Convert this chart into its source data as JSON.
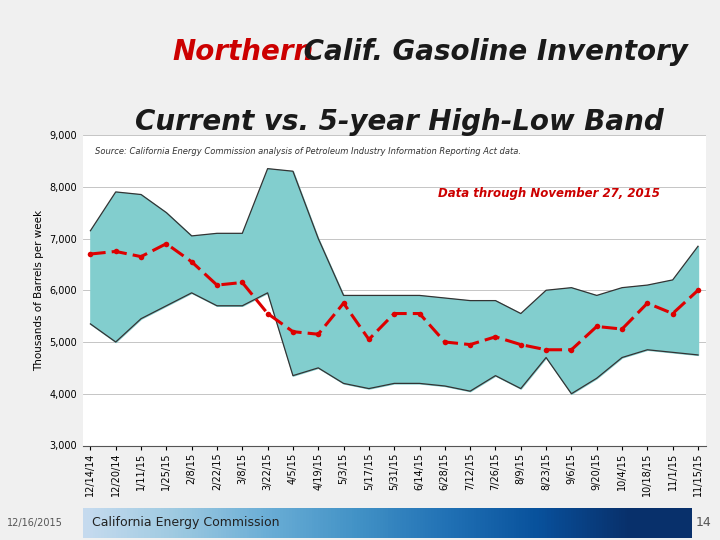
{
  "title_northern": "Northern",
  "title_rest_line1": " Calif. Gasoline Inventory",
  "title_line2": "Current vs. 5-year High-Low Band",
  "title_color_red": "#CC0000",
  "title_color_black": "#1a1a1a",
  "title_fontsize": 20,
  "source_text": "Source: California Energy Commission analysis of Petroleum Industry Information Reporting Act data.",
  "annotation_text": "Data through November 27, 2015",
  "annotation_color": "#CC0000",
  "ylabel": "Thousands of Barrels per week",
  "ylim": [
    3000,
    9000
  ],
  "yticks": [
    3000,
    4000,
    5000,
    6000,
    7000,
    8000,
    9000
  ],
  "footer_date": "12/16/2015",
  "footer_text": "California Energy Commission",
  "footer_number": "14",
  "band_fill_color": "#82CECE",
  "band_edge_color": "#333333",
  "current_color": "#DD0000",
  "background_color": "#f0f0f0",
  "chart_bg": "#ffffff",
  "x_labels": [
    "12/14/14",
    "12/20/14",
    "1/11/15",
    "1/25/15",
    "2/8/15",
    "2/22/15",
    "3/8/15",
    "3/22/15",
    "4/5/15",
    "4/19/15",
    "5/3/15",
    "5/17/15",
    "5/31/15",
    "6/14/15",
    "6/28/15",
    "7/12/15",
    "7/26/15",
    "8/9/15",
    "8/23/15",
    "9/6/15",
    "9/20/15",
    "10/4/15",
    "10/18/15",
    "11/1/15",
    "11/15/15"
  ],
  "high_values": [
    7150,
    7900,
    7850,
    7500,
    7050,
    7100,
    7100,
    8350,
    8300,
    7000,
    5900,
    5900,
    5900,
    5900,
    5850,
    5800,
    5800,
    5550,
    6000,
    6050,
    5900,
    6050,
    6100,
    6200,
    6850
  ],
  "low_values": [
    5350,
    5000,
    5450,
    5700,
    5950,
    5700,
    5700,
    5950,
    4350,
    4500,
    4200,
    4100,
    4200,
    4200,
    4150,
    4050,
    4350,
    4100,
    4700,
    4000,
    4300,
    4700,
    4850,
    4800,
    4750
  ],
  "current_values": [
    6700,
    6750,
    6650,
    6900,
    6550,
    6100,
    6150,
    5550,
    5200,
    5150,
    5750,
    5050,
    5550,
    5550,
    5000,
    4950,
    5100,
    4950,
    4850,
    4850,
    5300,
    5250,
    5750,
    5550,
    6000
  ]
}
